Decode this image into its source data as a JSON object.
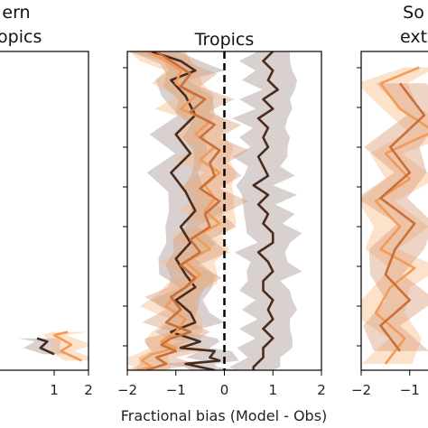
{
  "chart_data": {
    "type": "line",
    "xlabel": "Fractional bias (Model - Obs)",
    "colors": {
      "dark_line": "#4a2c1e",
      "mid_line": "#c96f3a",
      "light_line": "#f39a55",
      "band_dark": "#a89a94",
      "band_mid": "#d9a07c",
      "band_light": "#f8bc8c",
      "zero_line": "#000000"
    },
    "panels": [
      {
        "title_lines": [
          "ern",
          "ropics"
        ],
        "xlim": [
          -2,
          2
        ],
        "x_ticks": [
          1,
          2
        ],
        "series": [
          {
            "color_key": "dark_line",
            "x": [
              1.0,
              0.6,
              0.8,
              0.5
            ],
            "y": [
              0.95,
              0.93,
              0.91,
              0.9
            ]
          },
          {
            "color_key": "light_line",
            "x": [
              1.8,
              1.2,
              1.5,
              1.0,
              1.4
            ],
            "y": [
              0.97,
              0.94,
              0.92,
              0.89,
              0.88
            ]
          }
        ]
      },
      {
        "title_lines": [
          "Tropics"
        ],
        "xlim": [
          -2,
          2
        ],
        "x_ticks": [
          -2,
          -1,
          0,
          1,
          2
        ],
        "series": [
          {
            "color_key": "dark_line",
            "x": [
              1.0,
              0.8,
              1.0,
              0.9,
              1.1,
              0.8,
              1.0,
              0.7,
              0.9,
              0.8,
              0.9,
              0.7,
              0.8,
              0.9,
              0.6,
              0.9,
              0.7,
              0.9,
              0.8,
              1.0,
              1.0,
              0.7,
              0.9,
              1.0,
              0.8,
              0.8,
              1.0,
              0.9,
              1.0,
              0.8,
              1.0,
              0.8,
              0.8,
              0.6,
              0.6
            ],
            "y": [
              0.0,
              0.03,
              0.06,
              0.09,
              0.12,
              0.15,
              0.18,
              0.21,
              0.24,
              0.27,
              0.3,
              0.33,
              0.36,
              0.39,
              0.42,
              0.45,
              0.48,
              0.51,
              0.54,
              0.57,
              0.6,
              0.63,
              0.66,
              0.69,
              0.72,
              0.75,
              0.78,
              0.81,
              0.84,
              0.87,
              0.9,
              0.93,
              0.96,
              0.99,
              1.0
            ]
          },
          {
            "color_key": "dark_line",
            "x": [
              -1.5,
              -0.9,
              -0.6,
              -1.1,
              -0.8,
              -0.6,
              -1.0,
              -0.7,
              -1.1,
              -0.8,
              -0.6,
              -0.9,
              -0.7,
              -1.0,
              -0.8,
              -0.6,
              -1.0,
              -0.7,
              -0.6,
              -1.1,
              -0.7,
              -0.5,
              -0.9,
              -0.2,
              -0.3,
              -0.1,
              -0.8,
              -0.5,
              -0.2
            ],
            "y": [
              0.0,
              0.03,
              0.06,
              0.09,
              0.14,
              0.2,
              0.26,
              0.32,
              0.38,
              0.44,
              0.5,
              0.55,
              0.6,
              0.65,
              0.7,
              0.74,
              0.78,
              0.82,
              0.85,
              0.88,
              0.9,
              0.91,
              0.93,
              0.94,
              0.96,
              0.97,
              0.98,
              0.99,
              1.0
            ]
          },
          {
            "color_key": "light_line",
            "x": [
              -1.6,
              -1.2,
              -0.9,
              -1.0,
              -0.6,
              -0.9,
              -0.3,
              -0.6,
              -0.2,
              -0.5,
              -0.1,
              -0.4,
              -0.2,
              -0.4,
              -0.1,
              -0.6,
              -0.3,
              -0.8,
              -0.5,
              -0.7,
              -1.0,
              -1.2,
              -0.8,
              -1.0,
              -1.3,
              -1.0,
              -1.5,
              -1.7,
              -1.5,
              -1.8
            ],
            "y": [
              0.0,
              0.03,
              0.06,
              0.1,
              0.14,
              0.18,
              0.22,
              0.26,
              0.3,
              0.34,
              0.38,
              0.42,
              0.46,
              0.5,
              0.54,
              0.58,
              0.62,
              0.66,
              0.7,
              0.73,
              0.76,
              0.8,
              0.84,
              0.88,
              0.91,
              0.93,
              0.95,
              0.97,
              0.99,
              1.0
            ]
          },
          {
            "color_key": "mid_line",
            "x": [
              -1.4,
              -1.0,
              -0.7,
              -0.9,
              -0.4,
              -0.7,
              -0.2,
              -0.5,
              -0.1,
              -0.3,
              -0.2,
              -0.5,
              -0.1,
              -0.4,
              -0.3,
              -0.7,
              -0.5,
              -0.9,
              -0.6,
              -0.8,
              -1.1,
              -0.9,
              -1.2,
              -0.7,
              -1.1,
              -1.3,
              -1.0,
              -1.4,
              -1.2,
              -1.6
            ],
            "y": [
              0.0,
              0.04,
              0.07,
              0.11,
              0.15,
              0.19,
              0.23,
              0.27,
              0.31,
              0.35,
              0.39,
              0.43,
              0.47,
              0.51,
              0.55,
              0.59,
              0.63,
              0.67,
              0.71,
              0.74,
              0.77,
              0.81,
              0.85,
              0.88,
              0.9,
              0.92,
              0.94,
              0.96,
              0.98,
              1.0
            ]
          }
        ]
      },
      {
        "title_lines": [
          "So",
          "ext"
        ],
        "xlim": [
          -2,
          2
        ],
        "x_ticks": [
          -2,
          -1
        ],
        "series": [
          {
            "color_key": "light_line",
            "x": [
              -0.8,
              -1.6,
              -1.2,
              -0.5,
              -1.5,
              -1.0,
              -1.7,
              -1.2,
              -1.6,
              -0.9,
              -1.4,
              -1.7,
              -1.1,
              -1.5
            ],
            "y": [
              0.05,
              0.1,
              0.18,
              0.25,
              0.32,
              0.4,
              0.47,
              0.55,
              0.62,
              0.68,
              0.74,
              0.82,
              0.9,
              0.98
            ]
          },
          {
            "color_key": "mid_line",
            "x": [
              -1.2,
              -0.7,
              -1.4,
              -1.0,
              -1.6,
              -0.9,
              -1.3,
              -1.5,
              -1.0,
              -1.6,
              -1.2
            ],
            "y": [
              0.1,
              0.2,
              0.3,
              0.38,
              0.46,
              0.54,
              0.62,
              0.7,
              0.78,
              0.86,
              0.94
            ]
          }
        ]
      }
    ]
  }
}
